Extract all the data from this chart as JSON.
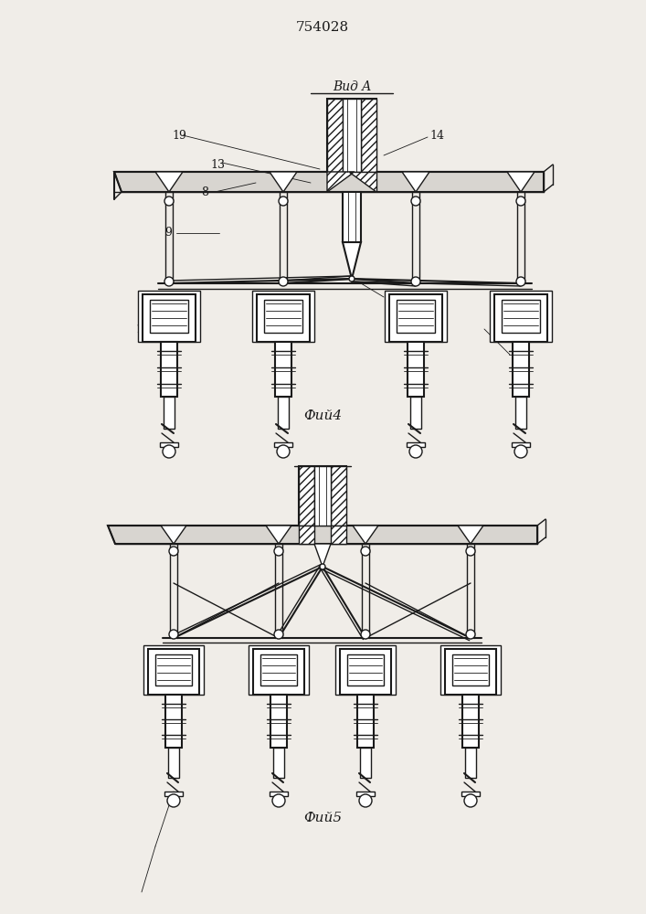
{
  "title": "754028",
  "bg_color": "#f0ede8",
  "line_color": "#1a1a1a",
  "fig4_caption": "Фий4",
  "fig5_caption": "Фий5",
  "vid_a": "Вид A"
}
